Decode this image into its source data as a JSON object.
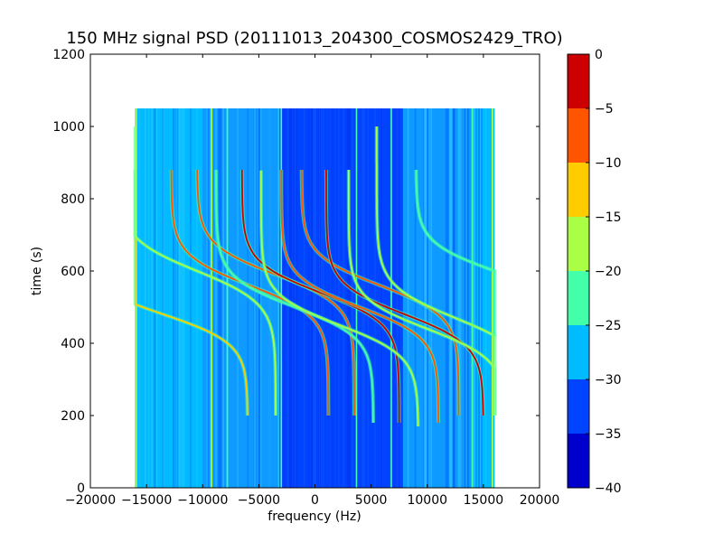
{
  "chart_data": {
    "type": "heatmap",
    "title": "150 MHz signal PSD (20111013_204300_COSMOS2429_TRO)",
    "xlabel": "frequency (Hz)",
    "ylabel": "time (s)",
    "xlim": [
      -20000,
      20000
    ],
    "ylim": [
      0,
      1200
    ],
    "x_ticks": [
      -20000,
      -15000,
      -10000,
      -5000,
      0,
      5000,
      10000,
      15000,
      20000
    ],
    "x_tick_labels": [
      "−20000",
      "−15000",
      "−10000",
      "−5000",
      "0",
      "5000",
      "10000",
      "15000",
      "20000"
    ],
    "y_ticks": [
      0,
      200,
      400,
      600,
      800,
      1000,
      1200
    ],
    "y_tick_labels": [
      "0",
      "200",
      "400",
      "600",
      "800",
      "1000",
      "1200"
    ],
    "data_extent": {
      "x": [
        -16000,
        16000
      ],
      "y": [
        0,
        1050
      ]
    },
    "grid": false,
    "colorbar": {
      "range": [
        -40,
        0
      ],
      "ticks": [
        0,
        -5,
        -10,
        -15,
        -20,
        -25,
        -30,
        -35,
        -40
      ],
      "tick_labels": [
        "0",
        "−5",
        "−10",
        "−15",
        "−20",
        "−25",
        "−30",
        "−35",
        "−40"
      ],
      "levels": [
        {
          "from": -40,
          "to": -35,
          "color": "#0000cc"
        },
        {
          "from": -35,
          "to": -30,
          "color": "#0044ff"
        },
        {
          "from": -30,
          "to": -25,
          "color": "#00bbff"
        },
        {
          "from": -25,
          "to": -20,
          "color": "#44ffaa"
        },
        {
          "from": -20,
          "to": -15,
          "color": "#aaff44"
        },
        {
          "from": -15,
          "to": -10,
          "color": "#ffcc00"
        },
        {
          "from": -10,
          "to": -5,
          "color": "#ff5500"
        },
        {
          "from": -5,
          "to": 0,
          "color": "#cc0000"
        }
      ]
    },
    "background_level_colors": {
      "low_band": "#00bbff",
      "mid_band": "#0044ff",
      "center_band": "#0044ff"
    },
    "doppler_curves": [
      {
        "center_time": 480,
        "center_freq": -13500,
        "span": 15000,
        "tau": 80,
        "t_range": [
          200,
          880
        ],
        "color": "#ffcc00"
      },
      {
        "center_time": 600,
        "center_freq": -10500,
        "span": 14000,
        "tau": 90,
        "t_range": [
          200,
          1000
        ],
        "color": "#aaff44"
      },
      {
        "center_time": 560,
        "center_freq": -5800,
        "span": 14000,
        "tau": 85,
        "t_range": [
          200,
          880
        ],
        "color": "#ff5500"
      },
      {
        "center_time": 590,
        "center_freq": -3500,
        "span": 14000,
        "tau": 85,
        "t_range": [
          200,
          880
        ],
        "color": "#ff5500"
      },
      {
        "center_time": 500,
        "center_freq": -1800,
        "span": 14000,
        "tau": 85,
        "t_range": [
          180,
          880
        ],
        "color": "#44ffaa"
      },
      {
        "center_time": 540,
        "center_freq": 500,
        "span": 14000,
        "tau": 85,
        "t_range": [
          180,
          880
        ],
        "color": "#cc0000"
      },
      {
        "center_time": 450,
        "center_freq": 2200,
        "span": 14000,
        "tau": 85,
        "t_range": [
          170,
          880
        ],
        "color": "#aaff44"
      },
      {
        "center_time": 500,
        "center_freq": 4000,
        "span": 14000,
        "tau": 85,
        "t_range": [
          180,
          880
        ],
        "color": "#ff5500"
      },
      {
        "center_time": 560,
        "center_freq": 5800,
        "span": 14000,
        "tau": 85,
        "t_range": [
          200,
          880
        ],
        "color": "#ff5500"
      },
      {
        "center_time": 480,
        "center_freq": 8000,
        "span": 14000,
        "tau": 85,
        "t_range": [
          200,
          880
        ],
        "color": "#cc0000"
      },
      {
        "center_time": 440,
        "center_freq": 10000,
        "span": 14000,
        "tau": 85,
        "t_range": [
          200,
          880
        ],
        "color": "#aaff44"
      },
      {
        "center_time": 470,
        "center_freq": 12500,
        "span": 14000,
        "tau": 90,
        "t_range": [
          200,
          1000
        ],
        "color": "#aaff44"
      },
      {
        "center_time": 600,
        "center_freq": 16000,
        "span": 14000,
        "tau": 80,
        "t_range": [
          420,
          880
        ],
        "color": "#44ffaa"
      }
    ],
    "vertical_lines": [
      {
        "freq": -15900,
        "color": "#aaff44"
      },
      {
        "freq": -9200,
        "color": "#aaff44"
      },
      {
        "freq": -7800,
        "color": "#44ffaa"
      },
      {
        "freq": -3000,
        "color": "#44ffaa"
      },
      {
        "freq": 3700,
        "color": "#44ffaa"
      },
      {
        "freq": 6800,
        "color": "#44ffaa"
      },
      {
        "freq": 14000,
        "color": "#44ffaa"
      },
      {
        "freq": 15800,
        "color": "#aaff44"
      }
    ]
  }
}
